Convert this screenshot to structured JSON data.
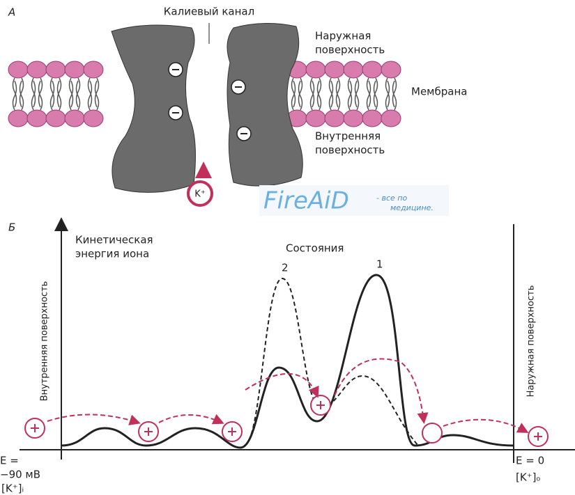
{
  "panel_a": {
    "label": "А",
    "channel_label": "Калиевый канал",
    "outer_surface": [
      "Наружная",
      "поверхность"
    ],
    "membrane": "Мембрана",
    "inner_surface": [
      "Внутренняя",
      "поверхность"
    ],
    "ion": "K⁺"
  },
  "watermark": {
    "brand": "FireAiD",
    "tagline": [
      "- все по",
      "медицине."
    ]
  },
  "panel_b": {
    "label": "Б",
    "y_axis_label": [
      "Кинетическая",
      "энергия иона"
    ],
    "states_label": "Состояния",
    "state_2": "2",
    "state_1": "1",
    "left_side": "Внутренняя поверхность",
    "right_side": "Наружная поверхность",
    "left_potential": [
      "E =",
      "−90 мВ"
    ],
    "left_concentration": "[K⁺]ᵢ",
    "right_potential": "E = 0",
    "right_concentration": "[K⁺]ₒ"
  }
}
